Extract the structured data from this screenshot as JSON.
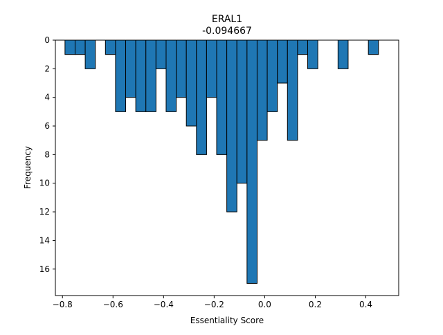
{
  "chart_data": {
    "type": "bar",
    "title": "ERAL1",
    "subtitle": "-0.094667",
    "xlabel": "Essentiality Score",
    "ylabel": "Frequency",
    "y_inverted": true,
    "xlim": [
      -0.828,
      0.53
    ],
    "ylim": [
      0,
      17.85
    ],
    "bin_width": 0.04,
    "bar_color": "#1f77b4",
    "edge_color": "#000000",
    "grid": false,
    "x_ticks": [
      -0.8,
      -0.6,
      -0.4,
      -0.2,
      0.0,
      0.2,
      0.4
    ],
    "x_tick_labels": [
      "−0.8",
      "−0.6",
      "−0.4",
      "−0.2",
      "0.0",
      "0.2",
      "0.4"
    ],
    "y_ticks": [
      0,
      2,
      4,
      6,
      8,
      10,
      12,
      14,
      16
    ],
    "y_tick_labels": [
      "0",
      "2",
      "4",
      "6",
      "8",
      "10",
      "12",
      "14",
      "16"
    ],
    "bins": [
      {
        "x": -0.77,
        "count": 1
      },
      {
        "x": -0.73,
        "count": 1
      },
      {
        "x": -0.69,
        "count": 2
      },
      {
        "x": -0.61,
        "count": 1
      },
      {
        "x": -0.57,
        "count": 5
      },
      {
        "x": -0.53,
        "count": 4
      },
      {
        "x": -0.49,
        "count": 5
      },
      {
        "x": -0.45,
        "count": 5
      },
      {
        "x": -0.41,
        "count": 2
      },
      {
        "x": -0.37,
        "count": 5
      },
      {
        "x": -0.33,
        "count": 4
      },
      {
        "x": -0.29,
        "count": 6
      },
      {
        "x": -0.25,
        "count": 8
      },
      {
        "x": -0.21,
        "count": 4
      },
      {
        "x": -0.17,
        "count": 8
      },
      {
        "x": -0.13,
        "count": 12
      },
      {
        "x": -0.09,
        "count": 10
      },
      {
        "x": -0.05,
        "count": 17
      },
      {
        "x": -0.01,
        "count": 7
      },
      {
        "x": 0.03,
        "count": 5
      },
      {
        "x": 0.07,
        "count": 3
      },
      {
        "x": 0.11,
        "count": 7
      },
      {
        "x": 0.15,
        "count": 1
      },
      {
        "x": 0.19,
        "count": 2
      },
      {
        "x": 0.31,
        "count": 2
      },
      {
        "x": 0.43,
        "count": 1
      }
    ]
  }
}
